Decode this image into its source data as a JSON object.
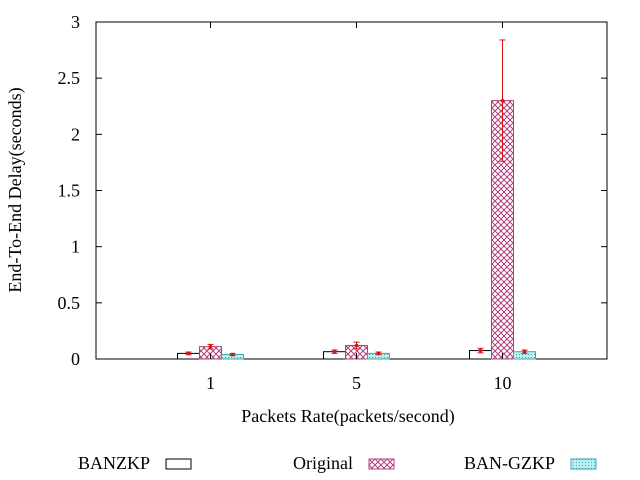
{
  "chart_data": {
    "type": "bar",
    "xlabel": "Packets Rate(packets/second)",
    "ylabel": "End-To-End Delay(seconds)",
    "ylim": [
      0,
      3
    ],
    "yticks": [
      "0",
      "0.5",
      "1",
      "1.5",
      "2",
      "2.5",
      "3"
    ],
    "categories": [
      "1",
      "5",
      "10"
    ],
    "series": [
      {
        "name": "BANZKP",
        "values": [
          0.05,
          0.065,
          0.075
        ],
        "errors": [
          0.012,
          0.015,
          0.02
        ],
        "pattern": "plain",
        "color": "#000000"
      },
      {
        "name": "Original",
        "values": [
          0.11,
          0.12,
          2.3
        ],
        "errors": [
          0.02,
          0.03,
          0.54
        ],
        "pattern": "crosshatch",
        "color": "#b0407a"
      },
      {
        "name": "BAN-GZKP",
        "values": [
          0.04,
          0.05,
          0.065
        ],
        "errors": [
          0.01,
          0.012,
          0.015
        ],
        "pattern": "dots",
        "color": "#3aa6a6"
      }
    ],
    "error_bar_color": "#e01010",
    "legend_position": "bottom",
    "grid": false
  }
}
